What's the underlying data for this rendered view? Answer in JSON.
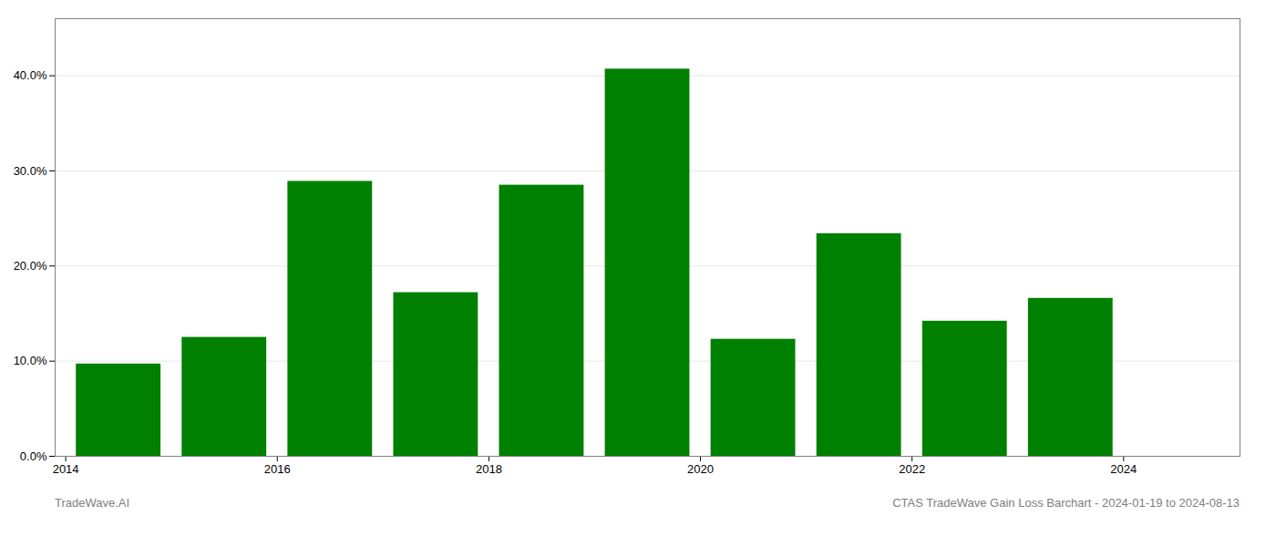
{
  "chart_data": {
    "type": "bar",
    "x": [
      2014,
      2015,
      2016,
      2017,
      2018,
      2019,
      2020,
      2021,
      2022,
      2023
    ],
    "values": [
      0.097,
      0.125,
      0.289,
      0.172,
      0.285,
      0.407,
      0.123,
      0.234,
      0.142,
      0.166
    ],
    "color": "#008000",
    "xlim": [
      2013.4,
      2024.6
    ],
    "xticks": [
      {
        "value": 2013.5,
        "label": "2014"
      },
      {
        "value": 2015.5,
        "label": "2016"
      },
      {
        "value": 2017.5,
        "label": "2018"
      },
      {
        "value": 2019.5,
        "label": "2020"
      },
      {
        "value": 2021.5,
        "label": "2022"
      },
      {
        "value": 2023.5,
        "label": "2024"
      }
    ],
    "ylim": [
      0.0,
      0.46
    ],
    "yticks": [
      {
        "value": 0.0,
        "label": "0.0%"
      },
      {
        "value": 0.1,
        "label": "10.0%"
      },
      {
        "value": 0.2,
        "label": "20.0%"
      },
      {
        "value": 0.3,
        "label": "30.0%"
      },
      {
        "value": 0.4,
        "label": "40.0%"
      }
    ],
    "grid": true,
    "annotations": [
      "TradeWave.AI",
      "CTAS TradeWave Gain Loss Barchart - 2024-01-19 to 2024-08-13"
    ]
  }
}
